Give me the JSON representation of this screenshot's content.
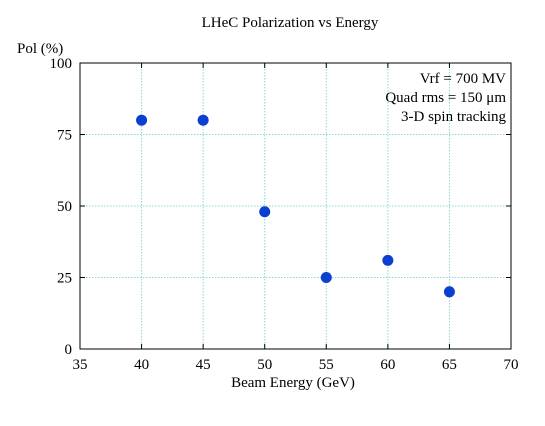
{
  "chart_data": {
    "type": "scatter",
    "title": "LHeC Polarization vs Energy",
    "xlabel": "Beam Energy (GeV)",
    "ylabel": "Pol (%)",
    "xlim": [
      35,
      70
    ],
    "ylim": [
      0,
      100
    ],
    "xticks": [
      35,
      40,
      45,
      50,
      55,
      60,
      65,
      70
    ],
    "yticks": [
      0,
      25,
      50,
      75,
      100
    ],
    "grid": true,
    "series": [
      {
        "x": [
          40,
          45,
          50,
          55,
          60,
          65
        ],
        "y": [
          80,
          80,
          48,
          25,
          31,
          20
        ],
        "color": "#0a3fd0"
      }
    ],
    "annotations": [
      "Vrf = 700 MV",
      "Quad rms = 150 μm",
      "3-D spin tracking"
    ],
    "grid_color": "#8fd4d4"
  }
}
